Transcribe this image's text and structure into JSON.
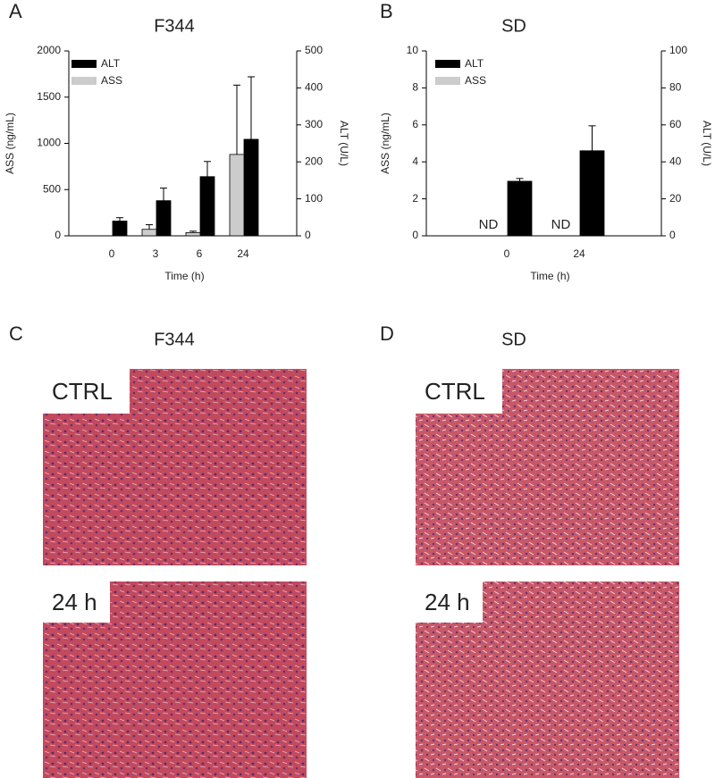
{
  "chart_data": [
    {
      "type": "bar",
      "panel": "A",
      "title": "F344",
      "categories": [
        "0",
        "3",
        "6",
        "24"
      ],
      "x_label": "Time (h)",
      "y_label": "ASS (ng/mL)",
      "y2_label": "ALT (U/L)",
      "ylim": [
        0,
        2000
      ],
      "yticks": [
        0,
        500,
        1000,
        1500,
        2000
      ],
      "y2lim": [
        0,
        500
      ],
      "y2ticks": [
        0,
        100,
        200,
        300,
        400,
        500
      ],
      "series": [
        {
          "name": "ALT",
          "color": "#000000",
          "axis": "y2",
          "values": [
            40,
            95,
            160,
            261
          ],
          "errors": [
            9,
            34,
            41,
            169
          ]
        },
        {
          "name": "ASS",
          "color": "#cccccc",
          "values": [
            null,
            70,
            35,
            880
          ],
          "errors": [
            null,
            50,
            15,
            750
          ]
        }
      ]
    },
    {
      "type": "bar",
      "panel": "B",
      "title": "SD",
      "categories": [
        "0",
        "24"
      ],
      "x_label": "Time (h)",
      "y_label": "ASS (ng/mL)",
      "y2_label": "ALT (U/L)",
      "ylim": [
        0,
        10
      ],
      "yticks": [
        0,
        2,
        4,
        6,
        8,
        10
      ],
      "y2lim": [
        0,
        100
      ],
      "y2ticks": [
        0,
        20,
        40,
        60,
        80,
        100
      ],
      "series": [
        {
          "name": "ALT",
          "color": "#000000",
          "axis": "y2",
          "values": [
            29.5,
            46
          ],
          "errors": [
            1.5,
            13.5
          ]
        },
        {
          "name": "ASS",
          "color": "#cccccc",
          "values": [
            null,
            null
          ],
          "value_labels": [
            "ND",
            "ND"
          ]
        }
      ]
    }
  ],
  "histology": [
    {
      "panel": "C",
      "title": "F344",
      "images": [
        {
          "label": "CTRL"
        },
        {
          "label": "24 h"
        }
      ]
    },
    {
      "panel": "D",
      "title": "SD",
      "images": [
        {
          "label": "CTRL"
        },
        {
          "label": "24 h"
        }
      ]
    }
  ]
}
